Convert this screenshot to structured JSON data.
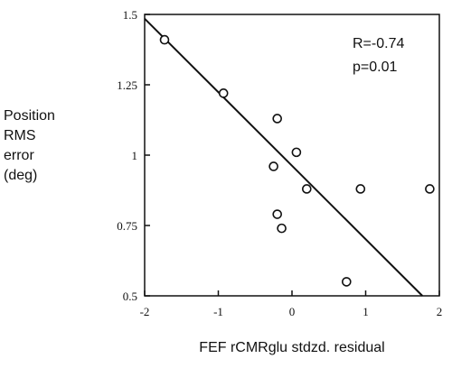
{
  "chart_data": {
    "type": "scatter",
    "title": "",
    "xlabel": "FEF  rCMRglu  stdzd.  residual",
    "ylabel": [
      "Position",
      "RMS",
      "error",
      "(deg)"
    ],
    "xlim": [
      -2,
      2
    ],
    "ylim": [
      0.5,
      1.5
    ],
    "xticks": [
      -2,
      -1,
      0,
      1,
      2
    ],
    "xtick_labels": [
      "-2",
      "-1",
      "0",
      "1",
      "2"
    ],
    "yticks": [
      0.5,
      0.75,
      1,
      1.25,
      1.5
    ],
    "ytick_labels": [
      "0.5",
      "0.75",
      "1",
      "1.25",
      "1.5"
    ],
    "grid": false,
    "points": [
      {
        "x": -1.73,
        "y": 1.41
      },
      {
        "x": -0.93,
        "y": 1.22
      },
      {
        "x": -0.2,
        "y": 1.13
      },
      {
        "x": 0.06,
        "y": 1.01
      },
      {
        "x": -0.25,
        "y": 0.96
      },
      {
        "x": 0.2,
        "y": 0.88
      },
      {
        "x": 0.93,
        "y": 0.88
      },
      {
        "x": 1.87,
        "y": 0.88
      },
      {
        "x": -0.2,
        "y": 0.79
      },
      {
        "x": -0.14,
        "y": 0.74
      },
      {
        "x": 0.74,
        "y": 0.55
      }
    ],
    "fit_line": {
      "x1": -2,
      "y1": 1.485,
      "x2": 1.77,
      "y2": 0.5
    },
    "annotations": [
      "R=-0.74",
      "p=0.01"
    ]
  }
}
